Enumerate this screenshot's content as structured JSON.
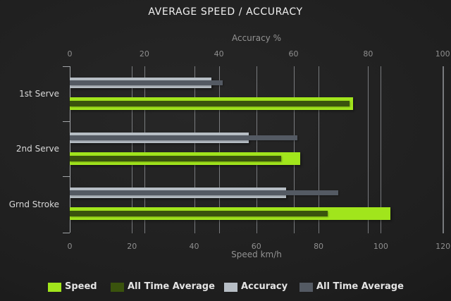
{
  "title": "AVERAGE SPEED / ACCURACY",
  "colors": {
    "speed": "#a1e51c",
    "speed_all_time": "#3a530d",
    "accuracy": "#b7bec5",
    "accuracy_all_time": "#545a63",
    "grid": "#979a9d",
    "background_center": "#272727",
    "background_edge": "#111111"
  },
  "chart_data": {
    "type": "bar",
    "orientation": "horizontal",
    "title": "AVERAGE SPEED / ACCURACY",
    "categories": [
      "1st Serve",
      "2nd Serve",
      "Grnd Stroke"
    ],
    "axes": {
      "top": {
        "label": "Accuracy %",
        "min": 0,
        "max": 100,
        "ticks": [
          0,
          20,
          40,
          60,
          80,
          100
        ]
      },
      "bottom": {
        "label": "Speed km/h",
        "min": 0,
        "max": 120,
        "ticks": [
          0,
          20,
          40,
          60,
          80,
          100,
          120
        ]
      }
    },
    "grid": true,
    "legend_position": "bottom",
    "series": [
      {
        "name": "Speed",
        "axis": "bottom",
        "role": "main",
        "group": "speed",
        "color": "#a1e51c",
        "values": [
          91,
          74,
          103
        ]
      },
      {
        "name": "All Time Average",
        "axis": "bottom",
        "role": "overlay",
        "group": "speed",
        "color": "#3a530d",
        "values": [
          90,
          68,
          83
        ]
      },
      {
        "name": "Accuracy",
        "axis": "top",
        "role": "main",
        "group": "accuracy",
        "color": "#b7bec5",
        "values": [
          38,
          48,
          58
        ]
      },
      {
        "name": "All Time Average",
        "axis": "top",
        "role": "overlay",
        "group": "accuracy",
        "color": "#545a63",
        "values": [
          41,
          61,
          72
        ]
      }
    ]
  }
}
